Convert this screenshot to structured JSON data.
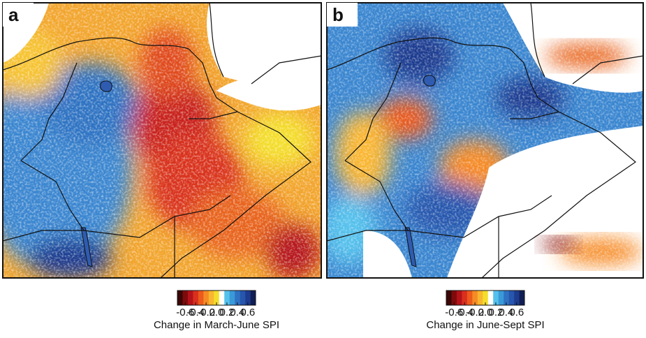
{
  "panels": [
    {
      "label": "a",
      "caption": "Change in March-June SPI"
    },
    {
      "label": "b",
      "caption": "Change in June-Sept SPI"
    }
  ],
  "colorbar": {
    "lim": [
      -0.75,
      0.75
    ],
    "ticks": [
      -0.6,
      -0.4,
      -0.2,
      {
        "value": 0,
        "label": "0.0"
      },
      0.2,
      0.4,
      0.6
    ],
    "colors": [
      "#3a0606",
      "#7e0b0b",
      "#b5131a",
      "#d9301e",
      "#ec5a1c",
      "#f68b25",
      "#f9b630",
      "#f4de2b",
      "#ffffff",
      "#54c1ec",
      "#3a9ad8",
      "#2f72c2",
      "#2656ad",
      "#1d3b8f",
      "#101e55"
    ]
  }
}
